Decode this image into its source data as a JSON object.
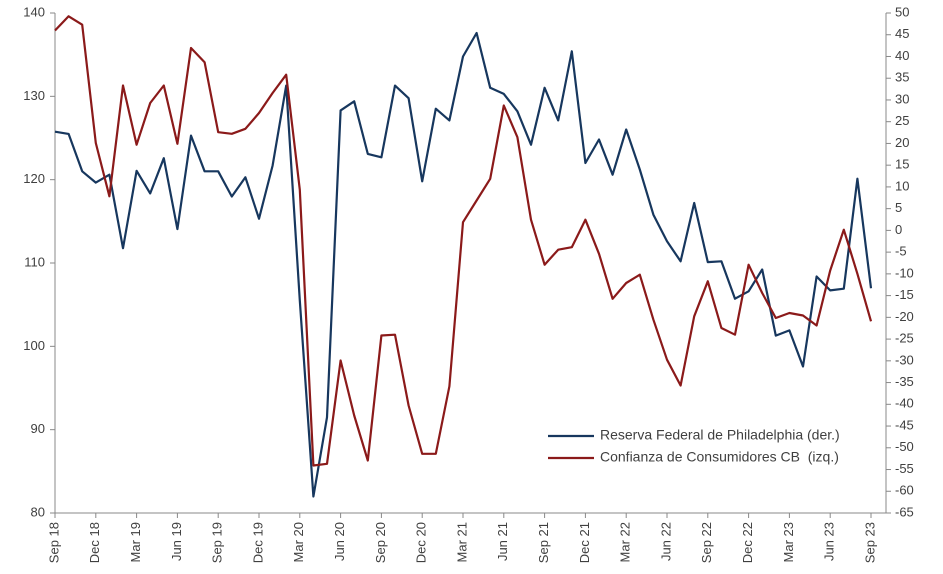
{
  "chart_data": {
    "type": "line",
    "categories": [
      "Sep 18",
      null,
      null,
      "Dec 18",
      null,
      null,
      "Mar 19",
      null,
      null,
      "Jun 19",
      null,
      null,
      "Sep 19",
      null,
      null,
      "Dec 19",
      null,
      null,
      "Mar 20",
      null,
      null,
      "Jun 20",
      null,
      null,
      "Sep 20",
      null,
      null,
      "Dec 20",
      null,
      null,
      "Mar 21",
      null,
      null,
      "Jun 21",
      null,
      null,
      "Sep 21",
      null,
      null,
      "Dec 21",
      null,
      null,
      "Mar 22",
      null,
      null,
      "Jun 22",
      null,
      null,
      "Sep 22",
      null,
      null,
      "Dec 22",
      null,
      null,
      "Mar 23",
      null,
      null,
      "Jun 23",
      null,
      null,
      "Sep 23"
    ],
    "series": [
      {
        "name": "Reserva Federal de Philadelphia (der.)",
        "color": "#17375e",
        "axis": "y2",
        "values": [
          22.7,
          22.2,
          13.6,
          11,
          12.8,
          -4.1,
          13.7,
          8.5,
          16.6,
          0.3,
          21.8,
          13.6,
          13.6,
          7.8,
          12.2,
          2.7,
          14.9,
          33.3,
          -16.1,
          -61.2,
          -43,
          27.6,
          29.7,
          17.6,
          16.8,
          33.3,
          30.4,
          11.3,
          28,
          25.3,
          40,
          45.4,
          32.8,
          31.4,
          27.4,
          19.7,
          32.8,
          25.3,
          41.2,
          15.5,
          20.9,
          12.8,
          23.2,
          14,
          3.6,
          -2.5,
          -7.1,
          6.3,
          -7.3,
          -7.1,
          -15.7,
          -14,
          -9,
          -24.2,
          -23,
          -31.3,
          -10.6,
          -13.8,
          -13.4,
          11.9,
          -13.3
        ]
      },
      {
        "name": "Confianza de Consumidores CB  (izq.)",
        "color": "#8b1a1a",
        "values": [
          137.9,
          139.6,
          138.6,
          124.4,
          118,
          131.3,
          124.2,
          129.2,
          131.3,
          124.3,
          135.8,
          134.1,
          125.7,
          125.5,
          126.1,
          128,
          130.4,
          132.6,
          118.8,
          85.7,
          85.9,
          98.3,
          91.7,
          86.3,
          101.3,
          101.4,
          92.9,
          87.1,
          87.1,
          95.2,
          114.9,
          117.5,
          120.1,
          128.9,
          125.1,
          115.2,
          109.8,
          111.6,
          111.9,
          115.2,
          111.1,
          105.7,
          107.6,
          108.6,
          103.2,
          98.4,
          95.3,
          103.6,
          107.8,
          102.2,
          101.4,
          109.8,
          106.4,
          103.4,
          104,
          103.7,
          102.5,
          109.1,
          114,
          108.7,
          103
        ]
      }
    ],
    "ylim": [
      80,
      140
    ],
    "yticks": [
      80,
      90,
      100,
      110,
      120,
      130,
      140
    ],
    "y2lim": [
      -65,
      50
    ],
    "y2ticks": [
      -65,
      -60,
      -55,
      -50,
      -45,
      -40,
      -35,
      -30,
      -25,
      -20,
      -15,
      -10,
      -5,
      0,
      5,
      10,
      15,
      20,
      25,
      30,
      35,
      40,
      45,
      50
    ],
    "legend": "lower right"
  }
}
